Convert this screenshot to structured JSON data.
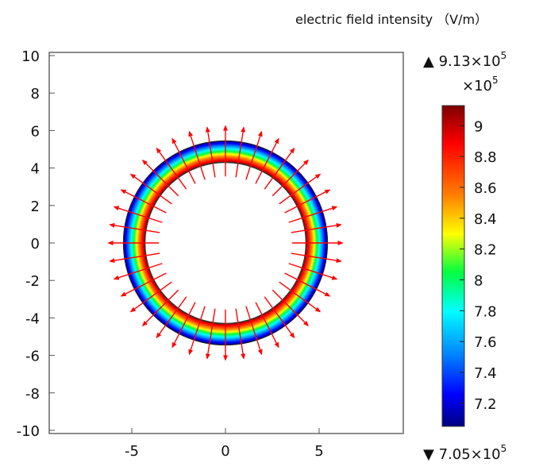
{
  "chart_data": {
    "type": "heatmap",
    "title": "electric field intensity （V/m）",
    "x_ticks": [
      -5,
      0,
      5
    ],
    "y_ticks": [
      10,
      8,
      6,
      4,
      2,
      0,
      -2,
      -4,
      -6,
      -8,
      -10
    ],
    "xlim": [
      -9.5,
      9.5
    ],
    "ylim": [
      -10.2,
      10.2
    ],
    "grid": false,
    "field_ring": {
      "center": [
        0,
        0
      ],
      "inner_radius": 4.3,
      "outer_radius": 5.45,
      "value_at_inner": 9.13,
      "value_at_outer": 7.05,
      "colormap": "rainbow"
    },
    "arrows": {
      "count": 40,
      "direction": "radial-outward",
      "color": "#ff0000"
    },
    "colorbar": {
      "max_label": "▲ 9.13×10",
      "max_exp": "5",
      "scale_label": "×10",
      "scale_exp": "5",
      "min_label": "▼ 7.05×10",
      "min_exp": "5",
      "ticks": [
        9,
        8.8,
        8.6,
        8.4,
        8.2,
        8,
        7.8,
        7.6,
        7.4,
        7.2
      ],
      "tick_labels": [
        "9",
        "8.8",
        "8.6",
        "8.4",
        "8.2",
        "8",
        "7.8",
        "7.6",
        "7.4",
        "7.2"
      ],
      "range": [
        7.05,
        9.13
      ]
    }
  }
}
